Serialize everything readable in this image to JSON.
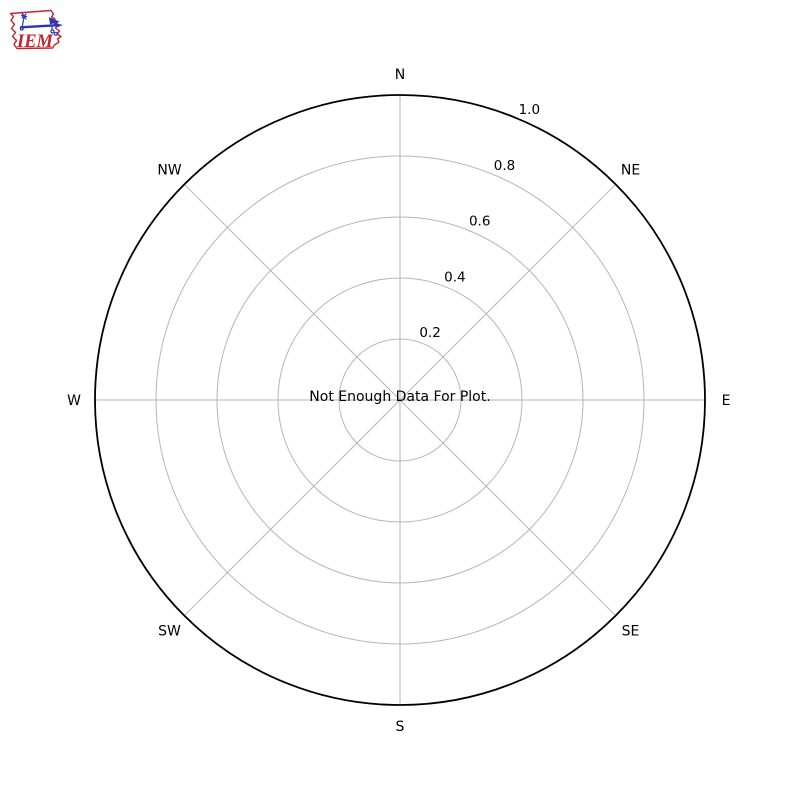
{
  "logo": {
    "text": "IEM",
    "icon": "iowa-state-outline-weathervane-icon",
    "outline_color": "#c3242e",
    "glyph_color": "#2a35bb",
    "text_color": "#c3242e"
  },
  "chart_data": {
    "type": "windrose-polar",
    "title": "",
    "message": "Not Enough Data For Plot.",
    "directions": [
      "N",
      "NE",
      "E",
      "SE",
      "S",
      "SW",
      "W",
      "NW"
    ],
    "radial_ticks": [
      "0.2",
      "0.4",
      "0.6",
      "0.8",
      "1.0"
    ],
    "radial_tick_values": [
      0.2,
      0.4,
      0.6,
      0.8,
      1.0
    ],
    "rlim": [
      0,
      1.0
    ],
    "rlabel_angle_deg": 24,
    "grid": true,
    "legend": null,
    "series": [],
    "colors": {
      "grid": "#b6b6b6",
      "outer_ring": "#000000",
      "text": "#000000",
      "background": "#ffffff"
    }
  }
}
